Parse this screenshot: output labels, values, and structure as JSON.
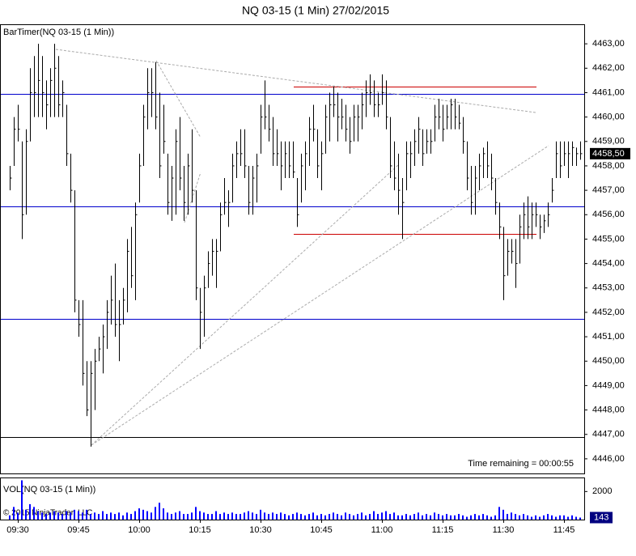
{
  "chart_data": [
    {
      "type": "ohlc",
      "title": "NQ 03-15 (1 Min)  27/02/2015",
      "indicator": "BarTimer(NQ 03-15 (1 Min))",
      "timer_text": "Time remaining = 00:00:55",
      "color": "#000000",
      "categories": [
        null,
        null,
        "09:30",
        null,
        null,
        null,
        null,
        null,
        null,
        null,
        null,
        null,
        null,
        null,
        null,
        null,
        null,
        "09:45",
        null,
        null,
        null,
        null,
        null,
        null,
        null,
        null,
        null,
        null,
        null,
        null,
        null,
        null,
        "10:00",
        null,
        null,
        null,
        null,
        null,
        null,
        null,
        null,
        null,
        null,
        null,
        null,
        null,
        null,
        "10:15",
        null,
        null,
        null,
        null,
        null,
        null,
        null,
        null,
        null,
        null,
        null,
        null,
        null,
        null,
        "10:30",
        null,
        null,
        null,
        null,
        null,
        null,
        null,
        null,
        null,
        null,
        null,
        null,
        null,
        null,
        "10:45",
        null,
        null,
        null,
        null,
        null,
        null,
        null,
        null,
        null,
        null,
        null,
        null,
        null,
        null,
        "11:00",
        null,
        null,
        null,
        null,
        null,
        null,
        null,
        null,
        null,
        null,
        null,
        null,
        null,
        null,
        "11:15",
        null,
        null,
        null,
        null,
        null,
        null,
        null,
        null,
        null,
        null,
        null,
        null,
        null,
        null,
        "11:30",
        null,
        null,
        null,
        null,
        null,
        null,
        null,
        null,
        null,
        null,
        null,
        null,
        null,
        null,
        "11:45",
        null,
        null,
        null,
        null
      ],
      "high": [
        4458,
        4460,
        4460.5,
        4459,
        4459.5,
        4462,
        4462.5,
        4463,
        4462.5,
        4461.5,
        4462,
        4463,
        4462.5,
        4461.5,
        4460.5,
        4458.5,
        4457,
        4452.5,
        4452.5,
        4450,
        4450,
        4450.5,
        4451,
        4451.5,
        4452.5,
        4453.5,
        4454,
        4452.5,
        4453,
        4455,
        4455.5,
        4456.5,
        4458.5,
        4460.5,
        4462,
        4462,
        4462.25,
        4461,
        4460.5,
        4458.5,
        4458,
        4459.5,
        4460,
        4458,
        4458.5,
        4459.5,
        4457,
        4453,
        4453.5,
        4454.5,
        4455,
        4455,
        4456.5,
        4457.5,
        4457,
        4458.5,
        4459,
        4459.5,
        4459.5,
        4458,
        4458,
        4458.5,
        4460.5,
        4461.5,
        4460.5,
        4460,
        4459.5,
        4459,
        4459,
        4459,
        4459,
        4457.5,
        4458.5,
        4459,
        4460,
        4460.5,
        4459.5,
        4459,
        4460.5,
        4461,
        4461.25,
        4461,
        4460.75,
        4460.5,
        4460,
        4460.5,
        4460.5,
        4461,
        4461.5,
        4461.75,
        4461.5,
        4461,
        4461.75,
        4461.5,
        4460,
        4459,
        4458.5,
        4457.5,
        4459,
        4459,
        4459.5,
        4460,
        4459.5,
        4459.5,
        4459.5,
        4460.5,
        4460.75,
        4460.5,
        4460.5,
        4460.75,
        4460.75,
        4460.5,
        4460,
        4459,
        4458,
        4458,
        4458.5,
        4458.75,
        4459,
        4458.5,
        4457.5,
        4456.5,
        4455.5,
        4455,
        4455,
        4455,
        4456,
        4456.5,
        4456.75,
        4456.5,
        4456.5,
        4456,
        4456,
        4456.5,
        4457.5,
        4459,
        4459,
        4459,
        4459,
        4459,
        4458.75,
        4459
      ],
      "low": [
        4457,
        4458,
        4459,
        4455,
        4456,
        4459,
        4460,
        4460,
        4460,
        4459.5,
        4460,
        4460,
        4460,
        4460,
        4458,
        4456.5,
        4452,
        4451,
        4449,
        4447.75,
        4446.5,
        4448,
        4450,
        4449.5,
        4450.5,
        4451.5,
        4451,
        4450,
        4451.5,
        4452,
        4453,
        4452.5,
        4456.5,
        4458,
        4459.5,
        4460,
        4459.5,
        4457.5,
        4458.5,
        4456,
        4455.75,
        4456,
        4457,
        4455.75,
        4456,
        4456.5,
        4452.5,
        4450.5,
        4451,
        4453,
        4453.5,
        4453,
        4454.5,
        4456,
        4455.5,
        4456.5,
        4457.5,
        4458,
        4457.5,
        4456,
        4456,
        4456.5,
        4458.5,
        4459.5,
        4459,
        4458,
        4458,
        4457,
        4457.5,
        4457.5,
        4457.5,
        4455.5,
        4456.5,
        4457,
        4458,
        4459,
        4457.5,
        4457,
        4458.5,
        4459,
        4460,
        4459,
        4459.5,
        4459,
        4458.5,
        4459,
        4459,
        4459.5,
        4460,
        4460.5,
        4460,
        4460,
        4460.5,
        4459.5,
        4457.5,
        4457,
        4456,
        4455,
        4457,
        4457.5,
        4458,
        4458.5,
        4458,
        4458.5,
        4458.5,
        4459,
        4459.5,
        4459,
        4459.5,
        4459.5,
        4459.5,
        4459.5,
        4458.5,
        4457,
        4456,
        4456,
        4457,
        4457.5,
        4457.5,
        4457,
        4456,
        4455,
        4452.5,
        4453.5,
        4454,
        4453,
        4454,
        4455,
        4455,
        4455,
        4455.5,
        4455,
        4455.25,
        4455.5,
        4456.5,
        4457.5,
        4457.5,
        4458,
        4457.5,
        4458,
        4458,
        4458.25
      ],
      "close": [
        4457.5,
        4459.5,
        4459.5,
        4456,
        4459,
        4461,
        4461,
        4461.5,
        4461,
        4460.5,
        4461.5,
        4462,
        4460.5,
        4461,
        4458.5,
        4457,
        4452.5,
        4451.5,
        4449.5,
        4448,
        4449.5,
        4450,
        4450.5,
        4451,
        4452,
        4452.5,
        4451.5,
        4451.5,
        4452.5,
        4454.5,
        4453.5,
        4456,
        4458,
        4460,
        4461,
        4461,
        4460,
        4458,
        4459,
        4456.5,
        4457.5,
        4459,
        4457.5,
        4456.5,
        4458,
        4457,
        4453,
        4452,
        4453,
        4454,
        4454.5,
        4454.5,
        4456,
        4456.5,
        4456.5,
        4458,
        4458.5,
        4458.5,
        4458,
        4456.5,
        4457.5,
        4458,
        4460,
        4460,
        4459.5,
        4458.5,
        4458.5,
        4458,
        4458.5,
        4458,
        4457.75,
        4456,
        4458,
        4458.5,
        4459.5,
        4459.5,
        4458,
        4458.5,
        4460,
        4460.5,
        4460.5,
        4460,
        4460,
        4459.5,
        4459,
        4460,
        4460,
        4460.5,
        4461,
        4461,
        4460.5,
        4460.5,
        4461,
        4460,
        4458,
        4457.5,
        4457,
        4456.5,
        4458.5,
        4458.5,
        4459,
        4459.5,
        4458.5,
        4459,
        4459,
        4460,
        4460,
        4459.5,
        4460,
        4460.5,
        4460,
        4459.75,
        4459,
        4457.5,
        4456.5,
        4457.5,
        4458,
        4458.5,
        4458,
        4457.5,
        4456.5,
        4455.5,
        4453.5,
        4454.5,
        4454.5,
        4454,
        4455.5,
        4456,
        4455.5,
        4456,
        4456,
        4455.5,
        4455.75,
        4456,
        4457,
        4458.5,
        4458,
        4458.5,
        4458.5,
        4458.75,
        4458.5,
        4458.5
      ],
      "last_price": {
        "value": 4458.5,
        "label": "4458,50"
      },
      "ylim": [
        4445.4,
        4463.8
      ],
      "yticks": [
        {
          "value": 4446,
          "label": "4446,00"
        },
        {
          "value": 4447,
          "label": "4447,00"
        },
        {
          "value": 4448,
          "label": "4448,00"
        },
        {
          "value": 4449,
          "label": "4449,00"
        },
        {
          "value": 4450,
          "label": "4450,00"
        },
        {
          "value": 4451,
          "label": "4451,00"
        },
        {
          "value": 4452,
          "label": "4452,00"
        },
        {
          "value": 4453,
          "label": "4453,00"
        },
        {
          "value": 4454,
          "label": "4454,00"
        },
        {
          "value": 4455,
          "label": "4455,00"
        },
        {
          "value": 4456,
          "label": "4456,00"
        },
        {
          "value": 4457,
          "label": "4457,00"
        },
        {
          "value": 4458,
          "label": "4458,00"
        },
        {
          "value": 4459,
          "label": "4459,00"
        },
        {
          "value": 4460,
          "label": "4460,00"
        },
        {
          "value": 4461,
          "label": "4461,00"
        },
        {
          "value": 4462,
          "label": "4462,00"
        },
        {
          "value": 4463,
          "label": "4463,00"
        }
      ]
    },
    {
      "type": "bar",
      "title": "VOL(NQ 03-15 (1 Min))",
      "copyright": "© 2015 NinjaTrader, LLC",
      "color": "#0000ff",
      "values": [
        300,
        900,
        500,
        2800,
        700,
        1100,
        900,
        600,
        500,
        400,
        500,
        600,
        500,
        400,
        600,
        500,
        700,
        600,
        500,
        700,
        400,
        500,
        400,
        600,
        400,
        500,
        400,
        500,
        300,
        500,
        400,
        600,
        800,
        700,
        600,
        500,
        900,
        1200,
        800,
        500,
        400,
        500,
        600,
        400,
        400,
        500,
        900,
        600,
        500,
        400,
        400,
        600,
        400,
        500,
        400,
        500,
        400,
        400,
        500,
        600,
        500,
        400,
        700,
        500,
        400,
        500,
        400,
        500,
        400,
        300,
        400,
        500,
        400,
        300,
        400,
        500,
        300,
        400,
        300,
        400,
        500,
        400,
        300,
        500,
        400,
        300,
        400,
        500,
        300,
        400,
        600,
        400,
        500,
        600,
        400,
        500,
        300,
        300,
        400,
        300,
        400,
        500,
        300,
        400,
        300,
        500,
        400,
        300,
        400,
        300,
        300,
        400,
        300,
        200,
        300,
        400,
        300,
        400,
        300,
        200,
        300,
        900,
        700,
        400,
        500,
        400,
        300,
        400,
        300,
        200,
        300,
        200,
        300,
        400,
        300,
        200,
        300,
        300,
        200,
        300,
        200,
        143
      ],
      "ylim": [
        0,
        3000
      ],
      "yticks": [
        2000
      ]
    }
  ]
}
